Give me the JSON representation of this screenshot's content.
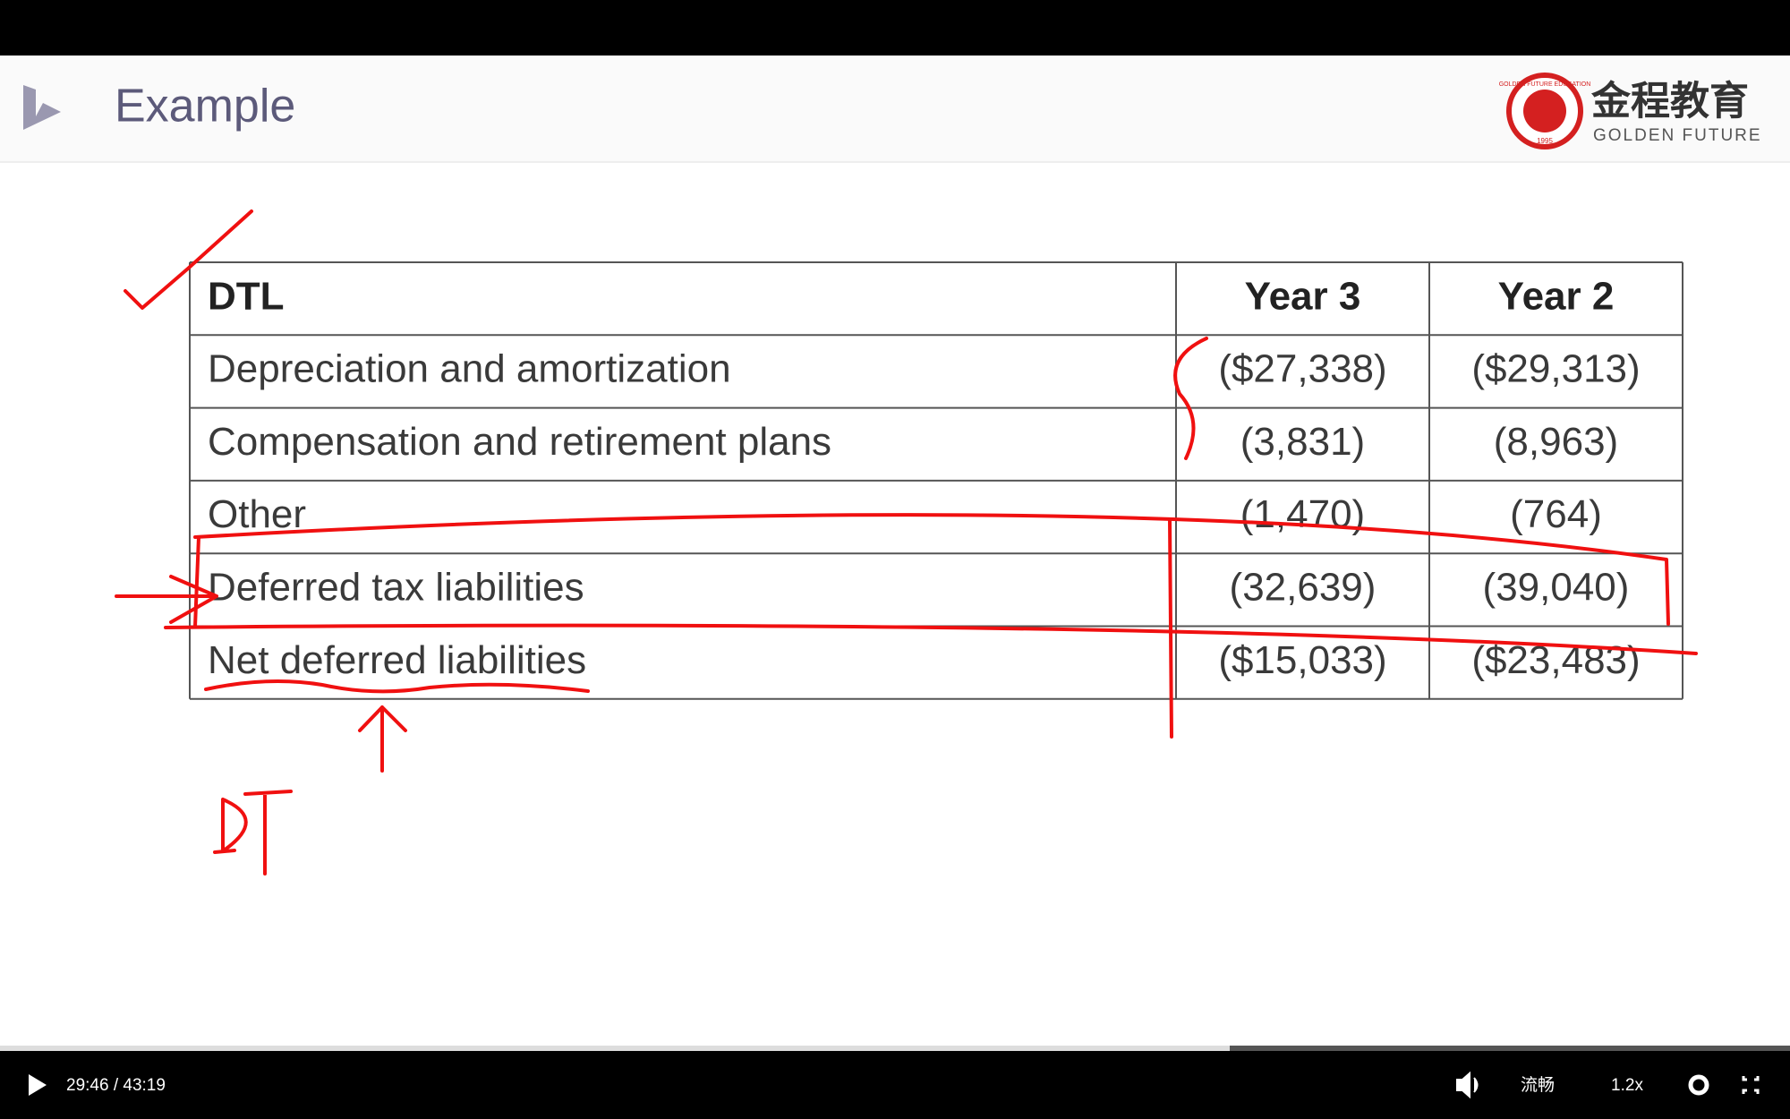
{
  "header": {
    "title": "Example",
    "logo": {
      "cn": "金程教育",
      "en": "GOLDEN FUTURE",
      "ring": "GOLDEN FUTURE EDUCATION",
      "year": "1995"
    }
  },
  "table": {
    "header": [
      "DTL",
      "Year 3",
      "Year 2"
    ],
    "rows": [
      [
        "Depreciation and amortization",
        "($27,338)",
        "($29,313)"
      ],
      [
        "Compensation and retirement plans",
        "(3,831)",
        "(8,963)"
      ],
      [
        "Other",
        "(1,470)",
        "(764)"
      ],
      [
        "Deferred tax liabilities",
        "(32,639)",
        "(39,040)"
      ],
      [
        "Net deferred liabilities",
        "($15,033)",
        "($23,483)"
      ]
    ]
  },
  "player": {
    "time": "29:46 / 43:19",
    "quality": "流畅",
    "speed": "1.2x"
  }
}
